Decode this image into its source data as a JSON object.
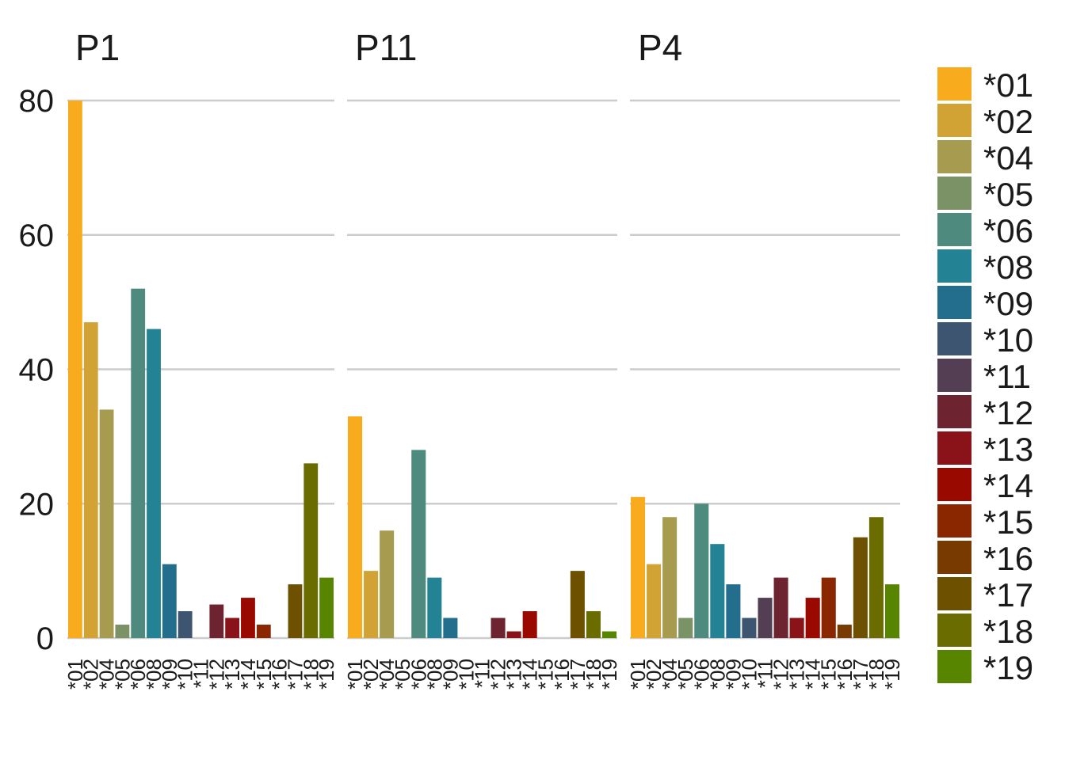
{
  "chart_data": {
    "type": "bar",
    "categories": [
      "*01",
      "*02",
      "*04",
      "*05",
      "*06",
      "*08",
      "*09",
      "*10",
      "*11",
      "*12",
      "*13",
      "*14",
      "*15",
      "*16",
      "*17",
      "*18",
      "*19"
    ],
    "colors": [
      "#F8AB1C",
      "#D1A234",
      "#A69B4E",
      "#7B9166",
      "#4E8A7E",
      "#238293",
      "#236D8D",
      "#3D5570",
      "#533E53",
      "#6E2430",
      "#8A1319",
      "#9A0900",
      "#8A2600",
      "#793A00",
      "#6E5100",
      "#6A6C00",
      "#578500"
    ],
    "ylim": [
      0,
      80
    ],
    "yticks": [
      "0",
      "20",
      "40",
      "60",
      "80"
    ],
    "grid": true,
    "legend_position": "right",
    "legend_labels": [
      "*01",
      "*02",
      "*04",
      "*05",
      "*06",
      "*08",
      "*09",
      "*10",
      "*11",
      "*12",
      "*13",
      "*14",
      "*15",
      "*16",
      "*17",
      "*18",
      "*19"
    ],
    "facets": [
      {
        "title": "P1",
        "values": [
          80,
          47,
          34,
          2,
          52,
          46,
          11,
          4,
          0,
          5,
          3,
          6,
          2,
          0,
          8,
          26,
          9
        ]
      },
      {
        "title": "P11",
        "values": [
          33,
          10,
          16,
          0,
          28,
          9,
          3,
          0,
          0,
          3,
          1,
          4,
          0,
          0,
          10,
          4,
          1
        ]
      },
      {
        "title": "P4",
        "values": [
          21,
          11,
          18,
          3,
          20,
          14,
          8,
          3,
          6,
          9,
          3,
          6,
          9,
          2,
          15,
          18,
          8
        ]
      }
    ]
  }
}
